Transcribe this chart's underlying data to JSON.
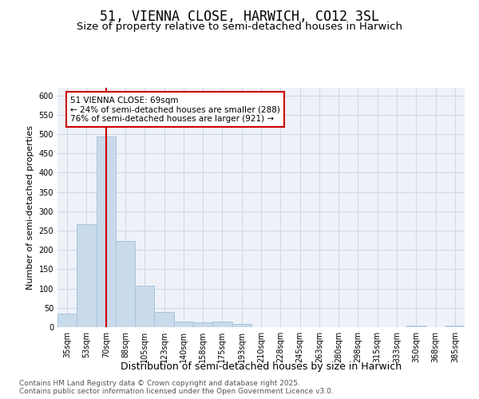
{
  "title": "51, VIENNA CLOSE, HARWICH, CO12 3SL",
  "subtitle": "Size of property relative to semi-detached houses in Harwich",
  "xlabel": "Distribution of semi-detached houses by size in Harwich",
  "ylabel": "Number of semi-detached properties",
  "categories": [
    "35sqm",
    "53sqm",
    "70sqm",
    "88sqm",
    "105sqm",
    "123sqm",
    "140sqm",
    "158sqm",
    "175sqm",
    "193sqm",
    "210sqm",
    "228sqm",
    "245sqm",
    "263sqm",
    "280sqm",
    "298sqm",
    "315sqm",
    "333sqm",
    "350sqm",
    "368sqm",
    "385sqm"
  ],
  "values": [
    35,
    267,
    493,
    224,
    108,
    40,
    15,
    13,
    14,
    8,
    1,
    1,
    1,
    0,
    0,
    0,
    0,
    0,
    4,
    0,
    4
  ],
  "bar_color": "#c9daea",
  "bar_edge_color": "#a8c4e0",
  "property_label": "51 VIENNA CLOSE: 69sqm",
  "pct_smaller": 24,
  "count_smaller": 288,
  "pct_larger": 76,
  "count_larger": 921,
  "vline_bin_index": 2,
  "vline_color": "#cc0000",
  "annotation_box_color": "#cc0000",
  "grid_color": "#d0d8e8",
  "background_color": "#eef2f8",
  "ylim": [
    0,
    620
  ],
  "yticks": [
    0,
    50,
    100,
    150,
    200,
    250,
    300,
    350,
    400,
    450,
    500,
    550,
    600
  ],
  "title_fontsize": 12,
  "subtitle_fontsize": 9.5,
  "xlabel_fontsize": 9,
  "ylabel_fontsize": 8,
  "tick_fontsize": 7,
  "annotation_fontsize": 7.5,
  "footer_fontsize": 6.5,
  "footer": "Contains HM Land Registry data © Crown copyright and database right 2025.\nContains public sector information licensed under the Open Government Licence v3.0."
}
